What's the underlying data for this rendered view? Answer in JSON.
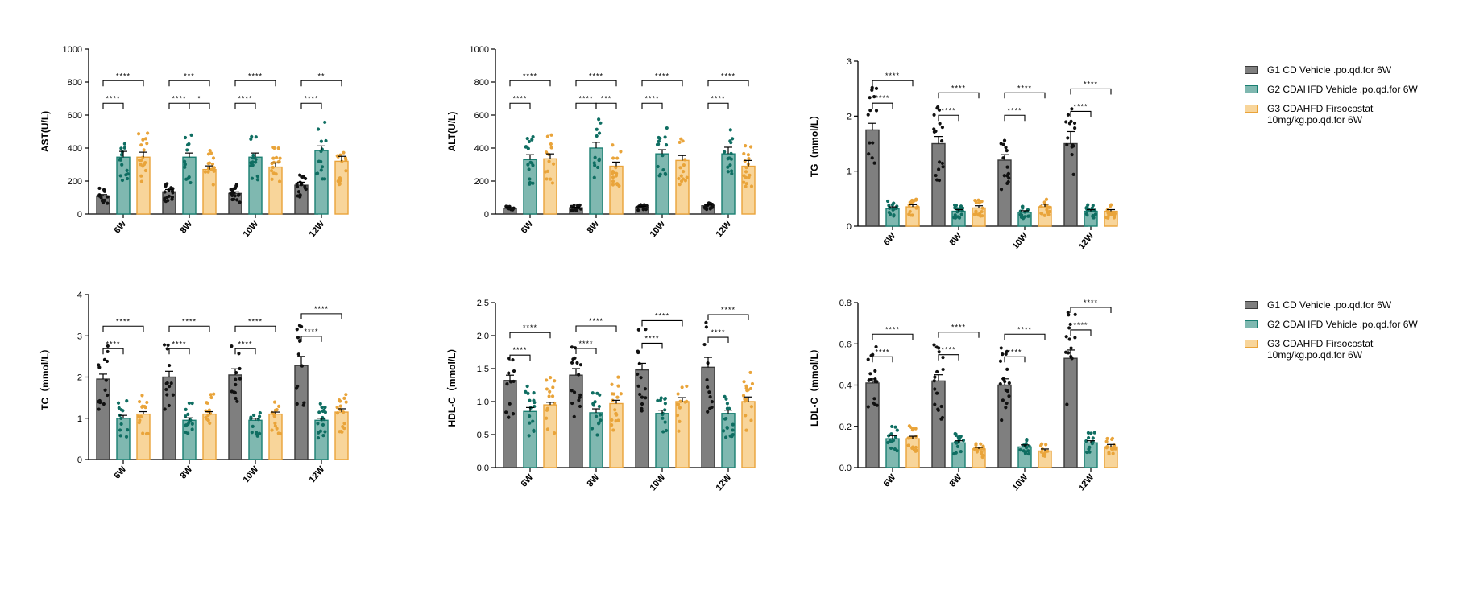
{
  "legend": {
    "items": [
      {
        "label": "G1 CD Vehicle .po.qd.for 6W",
        "fill": "#7f7f7f",
        "border": "#3a3a3a"
      },
      {
        "label": "G2 CDAHFD Vehicle .po.qd.for 6W",
        "fill": "#7fb8b0",
        "border": "#1a7f72"
      },
      {
        "label": "G3 CDAHFD Firsocostat 10mg/kg.po.qd.for 6W",
        "fill": "#f8d59a",
        "border": "#eaa339"
      }
    ]
  },
  "chart_data": [
    {
      "type": "bar",
      "id": "ast",
      "ylabel": "AST(U/L)",
      "ylim": [
        0,
        1000
      ],
      "yticks": [
        0,
        200,
        400,
        600,
        800,
        1000
      ],
      "categories": [
        "6W",
        "8W",
        "10W",
        "12W"
      ],
      "series": [
        {
          "name": "G1 CD Vehicle .po.qd.for 6W",
          "values": [
            110,
            135,
            125,
            175
          ],
          "errors": [
            8,
            14,
            10,
            18
          ]
        },
        {
          "name": "G2 CDAHFD Vehicle .po.qd.for 6W",
          "values": [
            345,
            345,
            345,
            385
          ],
          "errors": [
            35,
            25,
            25,
            28
          ]
        },
        {
          "name": "G3 CDAHFD Firsocostat 10mg/kg.po.qd.for 6W",
          "values": [
            345,
            270,
            285,
            320
          ],
          "errors": [
            30,
            22,
            25,
            30
          ]
        }
      ],
      "annotations": [
        {
          "category": "6W",
          "pairs": [
            {
              "from": 0,
              "to": 1,
              "label": "****"
            },
            {
              "from": 0,
              "to": 2,
              "label": "****"
            }
          ]
        },
        {
          "category": "8W",
          "pairs": [
            {
              "from": 0,
              "to": 1,
              "label": "****"
            },
            {
              "from": 1,
              "to": 2,
              "label": "*"
            },
            {
              "from": 0,
              "to": 2,
              "label": "***"
            }
          ]
        },
        {
          "category": "10W",
          "pairs": [
            {
              "from": 0,
              "to": 1,
              "label": "****"
            },
            {
              "from": 0,
              "to": 2,
              "label": "****"
            }
          ]
        },
        {
          "category": "12W",
          "pairs": [
            {
              "from": 0,
              "to": 1,
              "label": "****"
            },
            {
              "from": 0,
              "to": 2,
              "label": "**"
            }
          ]
        }
      ]
    },
    {
      "type": "bar",
      "id": "alt",
      "ylabel": "ALT(U/L)",
      "ylim": [
        0,
        1000
      ],
      "yticks": [
        0,
        200,
        400,
        600,
        800,
        1000
      ],
      "categories": [
        "6W",
        "8W",
        "10W",
        "12W"
      ],
      "series": [
        {
          "name": "G1 CD Vehicle .po.qd.for 6W",
          "values": [
            35,
            38,
            42,
            50
          ],
          "errors": [
            4,
            4,
            5,
            5
          ]
        },
        {
          "name": "G2 CDAHFD Vehicle .po.qd.for 6W",
          "values": [
            330,
            400,
            365,
            365
          ],
          "errors": [
            30,
            35,
            25,
            40
          ]
        },
        {
          "name": "G3 CDAHFD Firsocostat 10mg/kg.po.qd.for 6W",
          "values": [
            335,
            290,
            325,
            290
          ],
          "errors": [
            30,
            25,
            30,
            35
          ]
        }
      ],
      "annotations": [
        {
          "category": "6W",
          "pairs": [
            {
              "from": 0,
              "to": 1,
              "label": "****"
            },
            {
              "from": 0,
              "to": 2,
              "label": "****"
            }
          ]
        },
        {
          "category": "8W",
          "pairs": [
            {
              "from": 0,
              "to": 1,
              "label": "****"
            },
            {
              "from": 1,
              "to": 2,
              "label": "***"
            },
            {
              "from": 0,
              "to": 2,
              "label": "****"
            }
          ]
        },
        {
          "category": "10W",
          "pairs": [
            {
              "from": 0,
              "to": 1,
              "label": "****"
            },
            {
              "from": 0,
              "to": 2,
              "label": "****"
            }
          ]
        },
        {
          "category": "12W",
          "pairs": [
            {
              "from": 0,
              "to": 1,
              "label": "****"
            },
            {
              "from": 0,
              "to": 2,
              "label": "****"
            }
          ]
        }
      ]
    },
    {
      "type": "bar",
      "id": "tg",
      "ylabel": "TG（mmol/L）",
      "ylim": [
        0,
        3
      ],
      "yticks": [
        0,
        1,
        2,
        3
      ],
      "categories": [
        "6W",
        "8W",
        "10W",
        "12W"
      ],
      "series": [
        {
          "name": "G1 CD Vehicle .po.qd.for 6W",
          "values": [
            1.75,
            1.5,
            1.2,
            1.5
          ],
          "errors": [
            0.12,
            0.13,
            0.1,
            0.22
          ]
        },
        {
          "name": "G2 CDAHFD Vehicle .po.qd.for 6W",
          "values": [
            0.32,
            0.27,
            0.25,
            0.27
          ],
          "errors": [
            0.03,
            0.03,
            0.03,
            0.03
          ]
        },
        {
          "name": "G3 CDAHFD Firsocostat 10mg/kg.po.qd.for 6W",
          "values": [
            0.35,
            0.33,
            0.35,
            0.27
          ],
          "errors": [
            0.04,
            0.04,
            0.05,
            0.03
          ]
        }
      ],
      "annotations": [
        {
          "category": "6W",
          "pairs": [
            {
              "from": 0,
              "to": 1,
              "label": "****"
            },
            {
              "from": 0,
              "to": 2,
              "label": "****"
            }
          ]
        },
        {
          "category": "8W",
          "pairs": [
            {
              "from": 0,
              "to": 1,
              "label": "****"
            },
            {
              "from": 0,
              "to": 2,
              "label": "****"
            }
          ]
        },
        {
          "category": "10W",
          "pairs": [
            {
              "from": 0,
              "to": 1,
              "label": "****"
            },
            {
              "from": 0,
              "to": 2,
              "label": "****"
            }
          ]
        },
        {
          "category": "12W",
          "pairs": [
            {
              "from": 0,
              "to": 1,
              "label": "****"
            },
            {
              "from": 0,
              "to": 2,
              "label": "****"
            }
          ]
        }
      ]
    },
    {
      "type": "bar",
      "id": "tc",
      "ylabel": "TC（mmol/L）",
      "ylim": [
        0,
        4
      ],
      "yticks": [
        0,
        1,
        2,
        3,
        4
      ],
      "categories": [
        "6W",
        "8W",
        "10W",
        "12W"
      ],
      "series": [
        {
          "name": "G1 CD Vehicle .po.qd.for 6W",
          "values": [
            1.95,
            2.0,
            2.05,
            2.28
          ],
          "errors": [
            0.12,
            0.14,
            0.15,
            0.22
          ]
        },
        {
          "name": "G2 CDAHFD Vehicle .po.qd.for 6W",
          "values": [
            1.0,
            0.95,
            0.95,
            0.95
          ],
          "errors": [
            0.07,
            0.06,
            0.05,
            0.05
          ]
        },
        {
          "name": "G3 CDAHFD Firsocostat 10mg/kg.po.qd.for 6W",
          "values": [
            1.1,
            1.1,
            1.1,
            1.15
          ],
          "errors": [
            0.06,
            0.06,
            0.05,
            0.08
          ]
        }
      ],
      "annotations": [
        {
          "category": "6W",
          "pairs": [
            {
              "from": 0,
              "to": 1,
              "label": "****"
            },
            {
              "from": 0,
              "to": 2,
              "label": "****"
            }
          ]
        },
        {
          "category": "8W",
          "pairs": [
            {
              "from": 0,
              "to": 1,
              "label": "****"
            },
            {
              "from": 0,
              "to": 2,
              "label": "****"
            }
          ]
        },
        {
          "category": "10W",
          "pairs": [
            {
              "from": 0,
              "to": 1,
              "label": "****"
            },
            {
              "from": 0,
              "to": 2,
              "label": "****"
            }
          ]
        },
        {
          "category": "12W",
          "pairs": [
            {
              "from": 0,
              "to": 1,
              "label": "****"
            },
            {
              "from": 0,
              "to": 2,
              "label": "****"
            }
          ]
        }
      ]
    },
    {
      "type": "bar",
      "id": "hdl",
      "ylabel": "HDL-C（mmol/L）",
      "ylim": [
        0,
        2.5
      ],
      "yticks": [
        0.0,
        0.5,
        1.0,
        1.5,
        2.0,
        2.5
      ],
      "tickDecimals": 1,
      "categories": [
        "6W",
        "8W",
        "10W",
        "12W"
      ],
      "series": [
        {
          "name": "G1 CD Vehicle .po.qd.for 6W",
          "values": [
            1.32,
            1.4,
            1.48,
            1.52
          ],
          "errors": [
            0.08,
            0.1,
            0.1,
            0.15
          ]
        },
        {
          "name": "G2 CDAHFD Vehicle .po.qd.for 6W",
          "values": [
            0.85,
            0.83,
            0.82,
            0.82
          ],
          "errors": [
            0.06,
            0.06,
            0.05,
            0.05
          ]
        },
        {
          "name": "G3 CDAHFD Firsocostat 10mg/kg.po.qd.for 6W",
          "values": [
            0.95,
            0.97,
            1.0,
            1.0
          ],
          "errors": [
            0.04,
            0.05,
            0.06,
            0.07
          ]
        }
      ],
      "annotations": [
        {
          "category": "6W",
          "pairs": [
            {
              "from": 0,
              "to": 1,
              "label": "****"
            },
            {
              "from": 0,
              "to": 2,
              "label": "****"
            }
          ]
        },
        {
          "category": "8W",
          "pairs": [
            {
              "from": 0,
              "to": 1,
              "label": "****"
            },
            {
              "from": 0,
              "to": 2,
              "label": "****"
            }
          ]
        },
        {
          "category": "10W",
          "pairs": [
            {
              "from": 0,
              "to": 1,
              "label": "****"
            },
            {
              "from": 0,
              "to": 2,
              "label": "****"
            }
          ]
        },
        {
          "category": "12W",
          "pairs": [
            {
              "from": 0,
              "to": 1,
              "label": "****"
            },
            {
              "from": 0,
              "to": 2,
              "label": "****"
            }
          ]
        }
      ]
    },
    {
      "type": "bar",
      "id": "ldl",
      "ylabel": "LDL-C（mmol/L）",
      "ylim": [
        0,
        0.8
      ],
      "yticks": [
        0.0,
        0.2,
        0.4,
        0.6,
        0.8
      ],
      "tickDecimals": 1,
      "categories": [
        "6W",
        "8W",
        "10W",
        "12W"
      ],
      "series": [
        {
          "name": "G1 CD Vehicle .po.qd.for 6W",
          "values": [
            0.41,
            0.42,
            0.4,
            0.53
          ],
          "errors": [
            0.02,
            0.03,
            0.03,
            0.04
          ]
        },
        {
          "name": "G2 CDAHFD Vehicle .po.qd.for 6W",
          "values": [
            0.14,
            0.12,
            0.1,
            0.12
          ],
          "errors": [
            0.015,
            0.01,
            0.01,
            0.01
          ]
        },
        {
          "name": "G3 CDAHFD Firsocostat 10mg/kg.po.qd.for 6W",
          "values": [
            0.14,
            0.09,
            0.08,
            0.1
          ],
          "errors": [
            0.012,
            0.008,
            0.01,
            0.012
          ]
        }
      ],
      "annotations": [
        {
          "category": "6W",
          "pairs": [
            {
              "from": 0,
              "to": 1,
              "label": "****"
            },
            {
              "from": 0,
              "to": 2,
              "label": "****"
            }
          ]
        },
        {
          "category": "8W",
          "pairs": [
            {
              "from": 0,
              "to": 1,
              "label": "****"
            },
            {
              "from": 0,
              "to": 2,
              "label": "****"
            }
          ]
        },
        {
          "category": "10W",
          "pairs": [
            {
              "from": 0,
              "to": 1,
              "label": "****"
            },
            {
              "from": 0,
              "to": 2,
              "label": "****"
            }
          ]
        },
        {
          "category": "12W",
          "pairs": [
            {
              "from": 0,
              "to": 1,
              "label": "****"
            },
            {
              "from": 0,
              "to": 2,
              "label": "****"
            }
          ]
        }
      ]
    }
  ]
}
